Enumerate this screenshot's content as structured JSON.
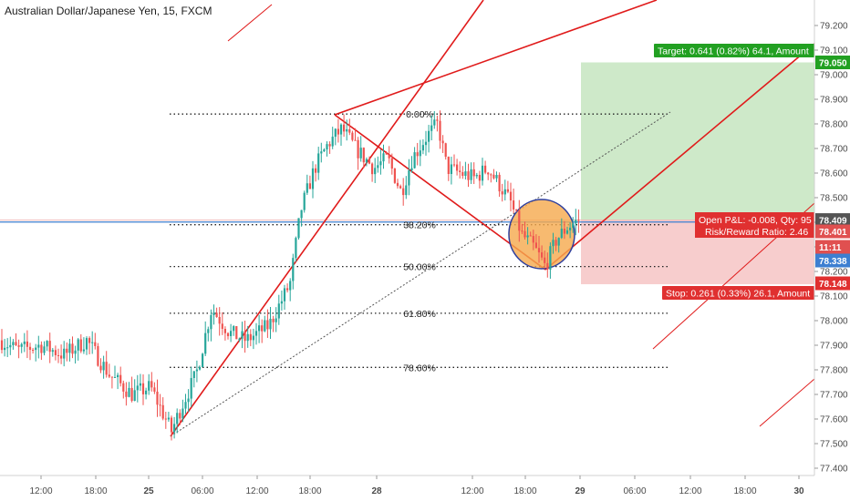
{
  "chart_data": {
    "type": "candlestick",
    "title": "Australian Dollar/Japanese Yen, 15, FXCM",
    "ylim": [
      77.35,
      79.29
    ],
    "y_ticks": [
      "79.200",
      "79.100",
      "79.000",
      "78.900",
      "78.800",
      "78.700",
      "78.600",
      "78.500",
      "78.400",
      "78.300",
      "78.200",
      "78.100",
      "78.000",
      "77.900",
      "77.800",
      "77.700",
      "77.600",
      "77.500",
      "77.400"
    ],
    "x_ticks": [
      "12:00",
      "18:00",
      "25",
      "06:00",
      "12:00",
      "18:00",
      "28",
      "12:00",
      "18:00",
      "29",
      "06:00",
      "12:00",
      "18:00",
      "30"
    ],
    "price_badges": [
      {
        "label": "79.050",
        "color": "#22a022"
      },
      {
        "label": "78.409",
        "color": "#555555"
      },
      {
        "label": "78.401",
        "color": "#e05050"
      },
      {
        "label": "11:11",
        "color": "#e05050"
      },
      {
        "label": "78.338",
        "color": "#3d7fd1"
      },
      {
        "label": "78.148",
        "color": "#e03030"
      }
    ],
    "fib_levels": [
      {
        "label": "0.00%",
        "price": 78.84
      },
      {
        "label": "38.20%",
        "price": 78.39
      },
      {
        "label": "50.00%",
        "price": 78.22
      },
      {
        "label": "61.80%",
        "price": 78.03
      },
      {
        "label": "78.60%",
        "price": 77.81
      }
    ],
    "position": {
      "entry": 78.409,
      "target_price": 79.05,
      "stop_price": 78.148,
      "target_label": "Target: 0.641 (0.82%) 64.1, Amount",
      "stop_label": "Stop: 0.261 (0.33%) 26.1, Amount",
      "pnl_label": "Open P&L: -0.008, Qty: 95",
      "rr_label": "Risk/Reward Ratio: 2.46"
    },
    "horizontal_line_price": 78.401,
    "colors": {
      "up": "#26a69a",
      "down": "#ef5350",
      "channel": "#e01b1b",
      "target_zone": "#c9e7c3",
      "stop_zone": "#f6c8c8",
      "hline": "#3d7fd1"
    }
  }
}
